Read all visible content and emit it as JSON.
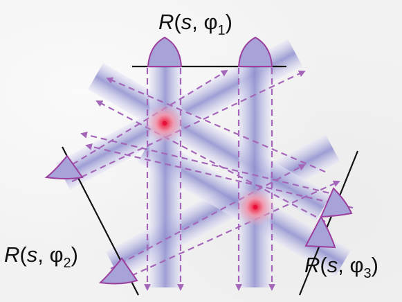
{
  "labels": {
    "top": {
      "main": "R(s, φ",
      "sub": "1",
      "close": ")"
    },
    "left": {
      "main": "R(s, φ",
      "sub": "2",
      "close": ")"
    },
    "right": {
      "main": "R(s, φ",
      "sub": "3",
      "close": ")"
    }
  },
  "colors": {
    "beam_dark": "#8f8fcf",
    "beam_light": "#e6e6f6",
    "lens_fill": "#a7a3d9",
    "lens_stroke": "#9c3f9e",
    "arrow": "#a466b8",
    "focus_core": "#e8103a",
    "focus_glow": "#f7b8c4",
    "rail": "#111111"
  }
}
